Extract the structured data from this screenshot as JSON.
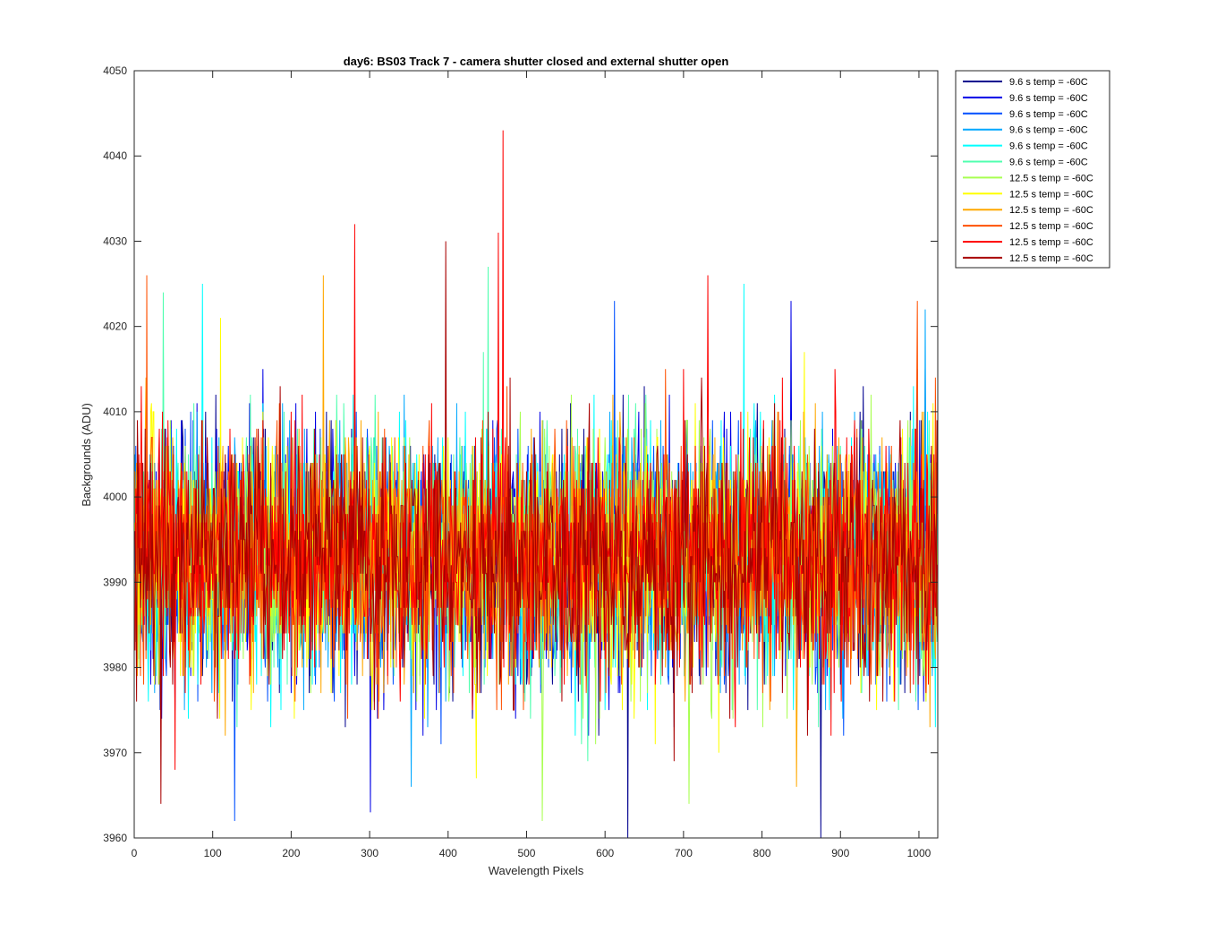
{
  "chart_data": {
    "type": "line",
    "title": "day6: BS03  Track 7 - camera shutter closed and external shutter open",
    "xlabel": "Wavelength Pixels",
    "ylabel": "Backgrounds (ADU)",
    "xlim": [
      0,
      1024
    ],
    "ylim": [
      3960,
      4050
    ],
    "xticks": [
      0,
      100,
      200,
      300,
      400,
      500,
      600,
      700,
      800,
      900,
      1000
    ],
    "yticks": [
      3960,
      3970,
      3980,
      3990,
      4000,
      4010,
      4020,
      4030,
      4040,
      4050
    ],
    "grid": false,
    "legend_position": "outside-top-right",
    "noise_model": {
      "n_points": 1024,
      "mean": 3993,
      "std": 7,
      "min": 3960,
      "max": 4050
    },
    "series": [
      {
        "name": "9.6 s temp = -60C",
        "color": "#00008f",
        "seed": 11,
        "spikes": [
          [
            628,
            3960
          ],
          [
            874,
            3960
          ]
        ]
      },
      {
        "name": "9.6 s temp = -60C",
        "color": "#0000e6",
        "seed": 23,
        "spikes": [
          [
            836,
            4023
          ],
          [
            300,
            3963
          ]
        ]
      },
      {
        "name": "9.6 s temp = -60C",
        "color": "#0050ff",
        "seed": 37,
        "spikes": [
          [
            127,
            3962
          ],
          [
            611,
            4023
          ]
        ]
      },
      {
        "name": "9.6 s temp = -60C",
        "color": "#00a8ff",
        "seed": 41,
        "spikes": [
          [
            1007,
            4022
          ],
          [
            352,
            3966
          ]
        ]
      },
      {
        "name": "9.6 s temp = -60C",
        "color": "#00ffff",
        "seed": 53,
        "spikes": [
          [
            86,
            4025
          ],
          [
            776,
            4025
          ]
        ]
      },
      {
        "name": "9.6 s temp = -60C",
        "color": "#50ffaf",
        "seed": 67,
        "spikes": [
          [
            450,
            4027
          ],
          [
            36,
            4024
          ]
        ]
      },
      {
        "name": "12.5 s temp = -60C",
        "color": "#a8ff50",
        "seed": 71,
        "spikes": [
          [
            519,
            3962
          ],
          [
            706,
            3964
          ]
        ]
      },
      {
        "name": "12.5 s temp = -60C",
        "color": "#ffff00",
        "seed": 83,
        "spikes": [
          [
            435,
            3967
          ],
          [
            109,
            4021
          ]
        ]
      },
      {
        "name": "12.5 s temp = -60C",
        "color": "#ffa800",
        "seed": 97,
        "spikes": [
          [
            240,
            4026
          ],
          [
            843,
            3966
          ]
        ]
      },
      {
        "name": "12.5 s temp = -60C",
        "color": "#ff5000",
        "seed": 101,
        "spikes": [
          [
            15,
            4026
          ],
          [
            997,
            4023
          ]
        ]
      },
      {
        "name": "12.5 s temp = -60C",
        "color": "#ff0000",
        "seed": 113,
        "spikes": [
          [
            469,
            4043
          ],
          [
            280,
            4032
          ],
          [
            463,
            4031
          ],
          [
            730,
            4026
          ]
        ]
      },
      {
        "name": "12.5 s temp = -60C",
        "color": "#a80000",
        "seed": 127,
        "spikes": [
          [
            396,
            4030
          ],
          [
            33,
            3964
          ]
        ]
      }
    ]
  }
}
